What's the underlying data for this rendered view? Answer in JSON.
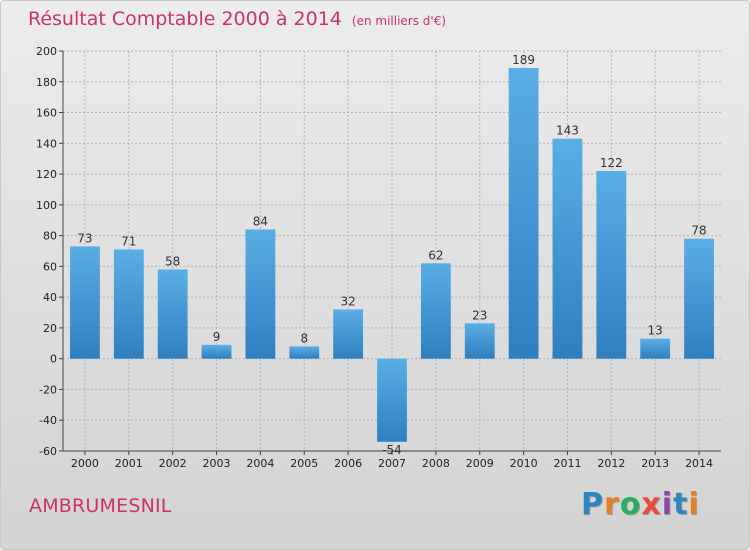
{
  "header": {
    "title": "Résultat Comptable 2000 à 2014",
    "subtitle": "(en milliers d'€)"
  },
  "commune": "AMBRUMESNIL",
  "logo": {
    "text": "Proxiti",
    "letter_colors": [
      "#2e86c1",
      "#e67e22",
      "#27ae60",
      "#e74c3c",
      "#8e44ad",
      "#2e86c1",
      "#e67e22"
    ]
  },
  "colors": {
    "bar_top": "#5aaee6",
    "bar_bottom": "#2f7fbf",
    "grid": "#b5b5b5",
    "axis": "#444444",
    "title": "#cc3366"
  },
  "chart_data": {
    "type": "bar",
    "categories": [
      "2000",
      "2001",
      "2002",
      "2003",
      "2004",
      "2005",
      "2006",
      "2007",
      "2008",
      "2009",
      "2010",
      "2011",
      "2012",
      "2013",
      "2014"
    ],
    "values": [
      73,
      71,
      58,
      9,
      84,
      8,
      32,
      -54,
      62,
      23,
      189,
      143,
      122,
      13,
      78
    ],
    "ylim": [
      -60,
      200
    ],
    "yticks": [
      -60,
      -40,
      -20,
      0,
      20,
      40,
      60,
      80,
      100,
      120,
      140,
      160,
      180,
      200
    ],
    "grid": true
  }
}
